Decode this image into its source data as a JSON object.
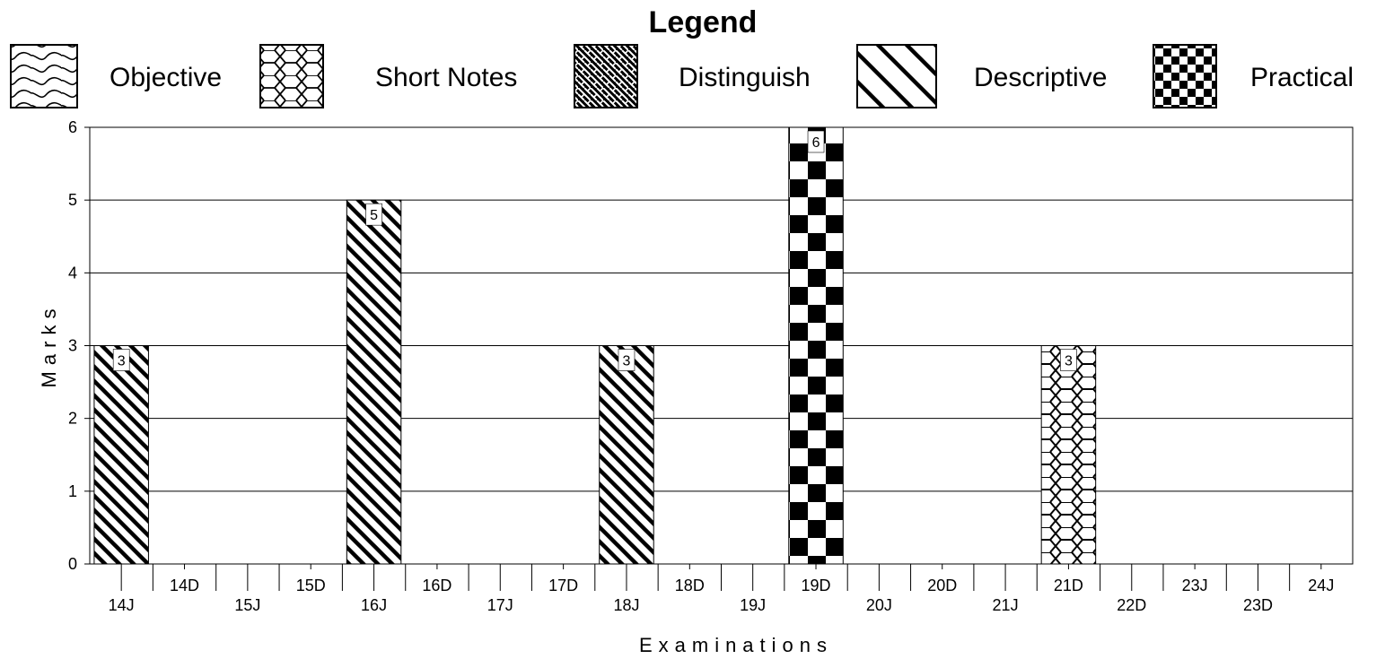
{
  "chart_data": {
    "type": "bar",
    "legend_title": "Legend",
    "legend_placement": "top",
    "xlabel": "Examinations",
    "ylabel": "Marks",
    "ylim": [
      0,
      6
    ],
    "yticks": [
      0,
      1,
      2,
      3,
      4,
      5,
      6
    ],
    "grid": true,
    "categories": [
      "14J",
      "14D",
      "15J",
      "15D",
      "16J",
      "16D",
      "17J",
      "17D",
      "18J",
      "18D",
      "19J",
      "19D",
      "20J",
      "20D",
      "21J",
      "21D",
      "22D",
      "23J",
      "23D",
      "24J"
    ],
    "series": [
      {
        "name": "Objective",
        "pattern": "wave",
        "values": [
          0,
          0,
          0,
          0,
          0,
          0,
          0,
          0,
          0,
          0,
          0,
          0,
          0,
          0,
          0,
          0,
          0,
          0,
          0,
          0
        ]
      },
      {
        "name": "Short Notes",
        "pattern": "hexagon",
        "values": [
          0,
          0,
          0,
          0,
          0,
          0,
          0,
          0,
          0,
          0,
          0,
          0,
          0,
          0,
          0,
          3,
          0,
          0,
          0,
          0
        ]
      },
      {
        "name": "Distinguish",
        "pattern": "weave",
        "values": [
          0,
          0,
          0,
          0,
          0,
          0,
          0,
          0,
          0,
          0,
          0,
          0,
          0,
          0,
          0,
          0,
          0,
          0,
          0,
          0
        ]
      },
      {
        "name": "Descriptive",
        "pattern": "diagonal-stripes",
        "values": [
          3,
          0,
          0,
          0,
          5,
          0,
          0,
          0,
          3,
          0,
          0,
          0,
          0,
          0,
          0,
          0,
          0,
          0,
          0,
          0
        ]
      },
      {
        "name": "Practical",
        "pattern": "checkerboard",
        "values": [
          0,
          0,
          0,
          0,
          0,
          0,
          0,
          0,
          0,
          0,
          0,
          6,
          0,
          0,
          0,
          0,
          0,
          0,
          0,
          0
        ]
      }
    ],
    "data_labels": [
      {
        "category": "14J",
        "value": 3,
        "text": "3"
      },
      {
        "category": "16J",
        "value": 5,
        "text": "5"
      },
      {
        "category": "18J",
        "value": 3,
        "text": "3"
      },
      {
        "category": "19D",
        "value": 6,
        "text": "6"
      },
      {
        "category": "21D",
        "value": 3,
        "text": "3"
      }
    ],
    "colors": {
      "ink": "#000000",
      "background": "#ffffff"
    }
  }
}
